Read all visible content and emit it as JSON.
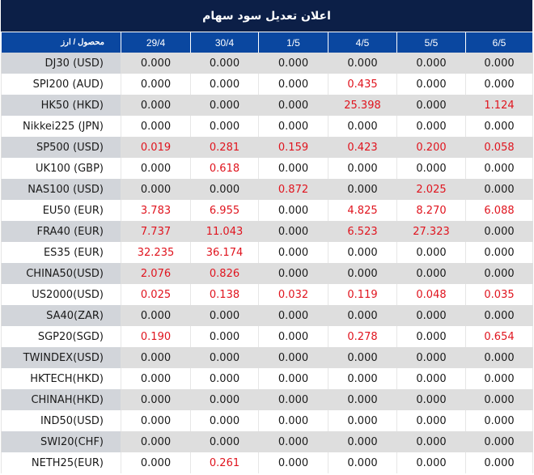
{
  "title": "اعلان تعدیل سود سهام",
  "colors": {
    "title_bg": "#0c1f47",
    "header_bg": "#0a47a0",
    "positive_value": "#e0141e",
    "zero_value": "#1a1a1a"
  },
  "table": {
    "headers": [
      "محصول / ارز",
      "29/4",
      "30/4",
      "1/5",
      "4/5",
      "5/5",
      "6/5"
    ],
    "rows": [
      {
        "product": "DJ30 (USD)",
        "values": [
          "0.000",
          "0.000",
          "0.000",
          "0.000",
          "0.000",
          "0.000"
        ]
      },
      {
        "product": "SPI200 (AUD)",
        "values": [
          "0.000",
          "0.000",
          "0.000",
          "0.435",
          "0.000",
          "0.000"
        ]
      },
      {
        "product": "HK50 (HKD)",
        "values": [
          "0.000",
          "0.000",
          "0.000",
          "25.398",
          "0.000",
          "1.124"
        ]
      },
      {
        "product": "Nikkei225 (JPN)",
        "values": [
          "0.000",
          "0.000",
          "0.000",
          "0.000",
          "0.000",
          "0.000"
        ]
      },
      {
        "product": "SP500 (USD)",
        "values": [
          "0.019",
          "0.281",
          "0.159",
          "0.423",
          "0.200",
          "0.058"
        ]
      },
      {
        "product": "UK100 (GBP)",
        "values": [
          "0.000",
          "0.618",
          "0.000",
          "0.000",
          "0.000",
          "0.000"
        ]
      },
      {
        "product": "NAS100 (USD)",
        "values": [
          "0.000",
          "0.000",
          "0.872",
          "0.000",
          "2.025",
          "0.000"
        ]
      },
      {
        "product": "EU50 (EUR)",
        "values": [
          "3.783",
          "6.955",
          "0.000",
          "4.825",
          "8.270",
          "6.088"
        ]
      },
      {
        "product": "FRA40 (EUR)",
        "values": [
          "7.737",
          "11.043",
          "0.000",
          "6.523",
          "27.323",
          "0.000"
        ]
      },
      {
        "product": "ES35 (EUR)",
        "values": [
          "32.235",
          "36.174",
          "0.000",
          "0.000",
          "0.000",
          "0.000"
        ]
      },
      {
        "product": "CHINA50(USD)",
        "values": [
          "2.076",
          "0.826",
          "0.000",
          "0.000",
          "0.000",
          "0.000"
        ]
      },
      {
        "product": "US2000(USD)",
        "values": [
          "0.025",
          "0.138",
          "0.032",
          "0.119",
          "0.048",
          "0.035"
        ]
      },
      {
        "product": "SA40(ZAR)",
        "values": [
          "0.000",
          "0.000",
          "0.000",
          "0.000",
          "0.000",
          "0.000"
        ]
      },
      {
        "product": "SGP20(SGD)",
        "values": [
          "0.190",
          "0.000",
          "0.000",
          "0.278",
          "0.000",
          "0.654"
        ]
      },
      {
        "product": "TWINDEX(USD)",
        "values": [
          "0.000",
          "0.000",
          "0.000",
          "0.000",
          "0.000",
          "0.000"
        ]
      },
      {
        "product": "HKTECH(HKD)",
        "values": [
          "0.000",
          "0.000",
          "0.000",
          "0.000",
          "0.000",
          "0.000"
        ]
      },
      {
        "product": "CHINAH(HKD)",
        "values": [
          "0.000",
          "0.000",
          "0.000",
          "0.000",
          "0.000",
          "0.000"
        ]
      },
      {
        "product": "IND50(USD)",
        "values": [
          "0.000",
          "0.000",
          "0.000",
          "0.000",
          "0.000",
          "0.000"
        ]
      },
      {
        "product": "SWI20(CHF)",
        "values": [
          "0.000",
          "0.000",
          "0.000",
          "0.000",
          "0.000",
          "0.000"
        ]
      },
      {
        "product": "NETH25(EUR)",
        "values": [
          "0.000",
          "0.261",
          "0.000",
          "0.000",
          "0.000",
          "0.000"
        ]
      }
    ]
  }
}
